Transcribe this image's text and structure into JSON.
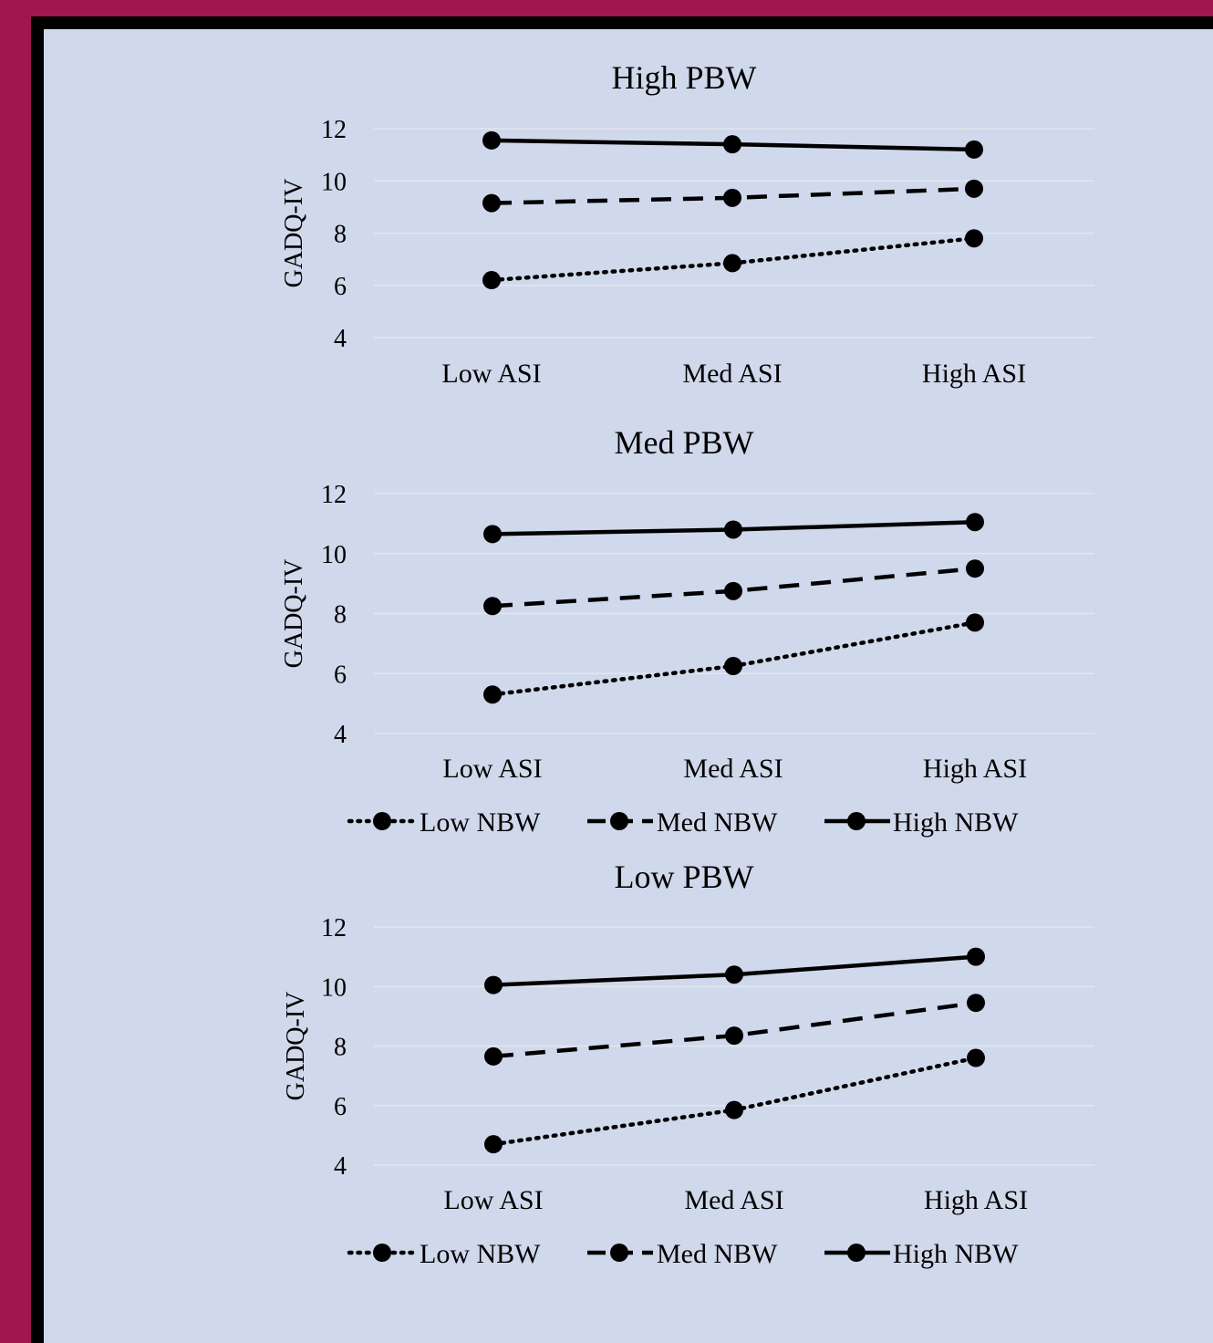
{
  "colors": {
    "frame": "#a01650",
    "panel_border": "#000000",
    "background": "#d0d8eb",
    "gridline": "#e2e6f0",
    "series": "#000000"
  },
  "chart_data": [
    {
      "type": "line",
      "title": "High PBW",
      "ylabel": "GADQ-IV",
      "xlabel": "",
      "categories": [
        "Low ASI",
        "Med ASI",
        "High ASI"
      ],
      "ylim": [
        4,
        12
      ],
      "yticks": [
        "4",
        "6",
        "8",
        "10",
        "12"
      ],
      "grid": true,
      "legend": null,
      "series": [
        {
          "name": "Low NBW",
          "style": "dotted",
          "values": [
            6.2,
            6.85,
            7.8
          ]
        },
        {
          "name": "Med NBW",
          "style": "dashed",
          "values": [
            9.15,
            9.35,
            9.7
          ]
        },
        {
          "name": "High NBW",
          "style": "solid",
          "values": [
            11.55,
            11.4,
            11.2
          ]
        }
      ]
    },
    {
      "type": "line",
      "title": "Med PBW",
      "ylabel": "GADQ-IV",
      "xlabel": "",
      "categories": [
        "Low ASI",
        "Med ASI",
        "High ASI"
      ],
      "ylim": [
        4,
        12
      ],
      "yticks": [
        "4",
        "6",
        "8",
        "10",
        "12"
      ],
      "grid": true,
      "legend": "bottom",
      "legend_labels": [
        "Low NBW",
        "Med NBW",
        "High NBW"
      ],
      "series": [
        {
          "name": "Low NBW",
          "style": "dotted",
          "values": [
            5.3,
            6.25,
            7.7
          ]
        },
        {
          "name": "Med NBW",
          "style": "dashed",
          "values": [
            8.25,
            8.75,
            9.5
          ]
        },
        {
          "name": "High NBW",
          "style": "solid",
          "values": [
            10.65,
            10.8,
            11.05
          ]
        }
      ]
    },
    {
      "type": "line",
      "title": "Low PBW",
      "ylabel": "GADQ-IV",
      "xlabel": "",
      "categories": [
        "Low ASI",
        "Med ASI",
        "High ASI"
      ],
      "ylim": [
        4,
        12
      ],
      "yticks": [
        "4",
        "6",
        "8",
        "10",
        "12"
      ],
      "grid": true,
      "legend": "bottom",
      "legend_labels": [
        "Low NBW",
        "Med NBW",
        "High NBW"
      ],
      "series": [
        {
          "name": "Low NBW",
          "style": "dotted",
          "values": [
            4.7,
            5.85,
            7.6
          ]
        },
        {
          "name": "Med NBW",
          "style": "dashed",
          "values": [
            7.65,
            8.35,
            9.45
          ]
        },
        {
          "name": "High NBW",
          "style": "solid",
          "values": [
            10.05,
            10.4,
            11.0
          ]
        }
      ]
    }
  ]
}
